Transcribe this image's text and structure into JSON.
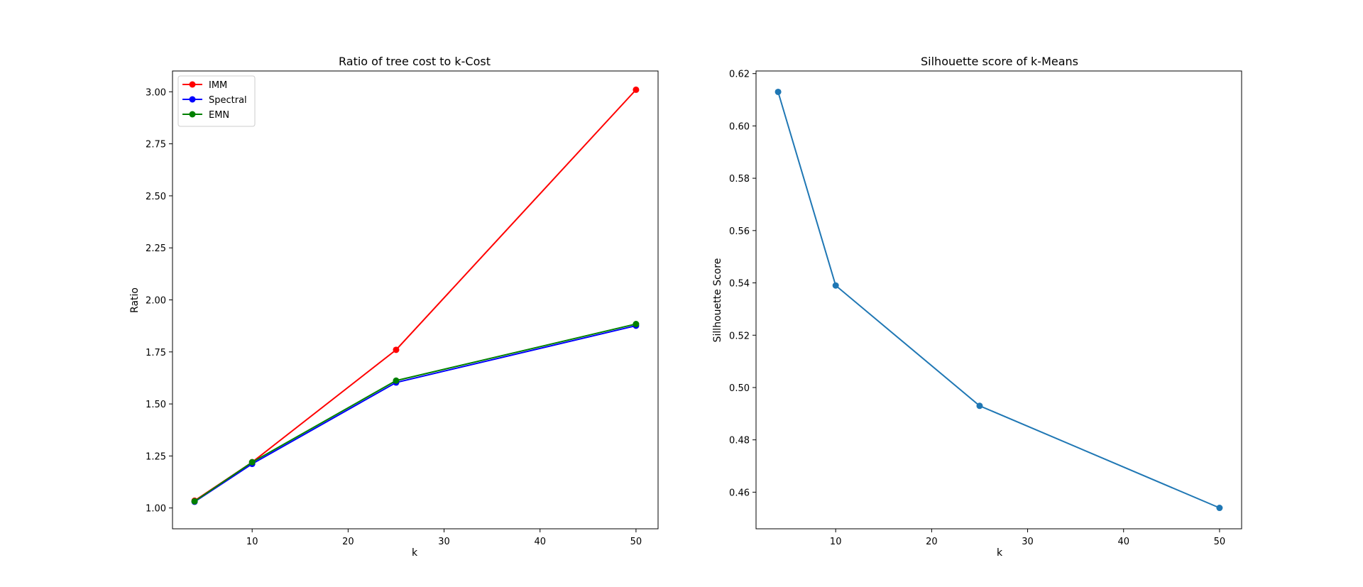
{
  "chart_data": [
    {
      "type": "line",
      "title": "Ratio of tree cost to k-Cost",
      "xlabel": "k",
      "ylabel": "Ratio",
      "x": [
        4,
        10,
        25,
        50
      ],
      "xlim": [
        1.7,
        52.3
      ],
      "ylim": [
        0.9,
        3.1
      ],
      "xticks": [
        10,
        20,
        30,
        40,
        50
      ],
      "xtick_labels": [
        "10",
        "20",
        "30",
        "40",
        "50"
      ],
      "yticks": [
        1.0,
        1.25,
        1.5,
        1.75,
        2.0,
        2.25,
        2.5,
        2.75,
        3.0
      ],
      "ytick_labels": [
        "1.00",
        "1.25",
        "1.50",
        "1.75",
        "2.00",
        "2.25",
        "2.50",
        "2.75",
        "3.00"
      ],
      "grid": false,
      "legend_position": "upper-left",
      "series": [
        {
          "name": "IMM",
          "color": "#ff0000",
          "values": [
            1.035,
            1.22,
            1.76,
            3.01
          ]
        },
        {
          "name": "Spectral",
          "color": "#0000ff",
          "values": [
            1.03,
            1.212,
            1.603,
            1.876
          ]
        },
        {
          "name": "EMN",
          "color": "#008000",
          "values": [
            1.032,
            1.22,
            1.612,
            1.884
          ]
        }
      ]
    },
    {
      "type": "line",
      "title": "Silhouette score of k-Means",
      "xlabel": "k",
      "ylabel": "Sillhouette Score",
      "x": [
        4,
        10,
        25,
        50
      ],
      "xlim": [
        1.7,
        52.3
      ],
      "ylim": [
        0.446,
        0.621
      ],
      "xticks": [
        10,
        20,
        30,
        40,
        50
      ],
      "xtick_labels": [
        "10",
        "20",
        "30",
        "40",
        "50"
      ],
      "yticks": [
        0.46,
        0.48,
        0.5,
        0.52,
        0.54,
        0.56,
        0.58,
        0.6,
        0.62
      ],
      "ytick_labels": [
        "0.46",
        "0.48",
        "0.50",
        "0.52",
        "0.54",
        "0.56",
        "0.58",
        "0.60",
        "0.62"
      ],
      "grid": false,
      "series": [
        {
          "color": "#1f77b4",
          "values": [
            0.613,
            0.539,
            0.493,
            0.454
          ]
        }
      ]
    }
  ]
}
